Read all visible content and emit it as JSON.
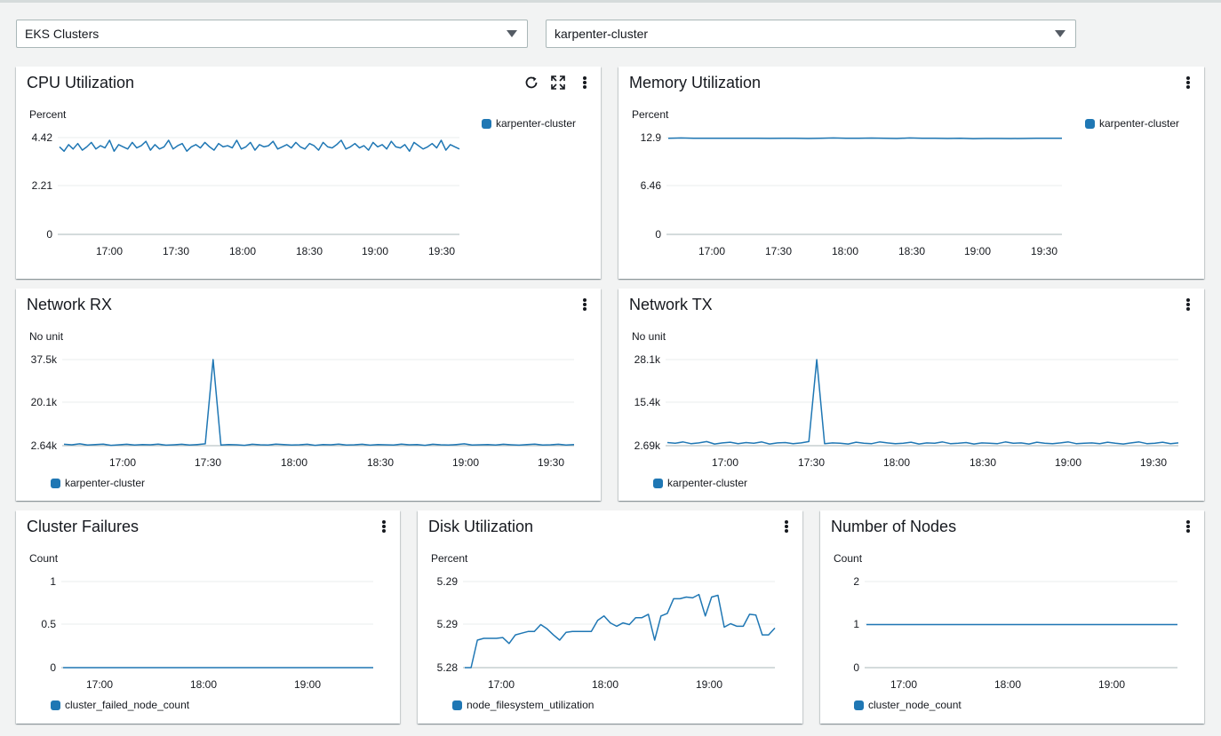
{
  "filters": {
    "service": "EKS Clusters",
    "cluster": "karpenter-cluster"
  },
  "icons": {
    "refresh": "refresh-icon",
    "expand": "expand-icon",
    "menu": "more-vertical-icon"
  },
  "colors": {
    "series": "#1f77b4",
    "grid": "#eaeded",
    "axis": "#aab7b8"
  },
  "panels": [
    {
      "id": "cpu",
      "title": "CPU Utilization",
      "unit": "Percent",
      "legend": "karpenter-cluster",
      "y_ticks": [
        "4.42",
        "2.21",
        "0"
      ],
      "x_ticks": [
        "17:00",
        "17:30",
        "18:00",
        "18:30",
        "19:00",
        "19:30"
      ]
    },
    {
      "id": "memory",
      "title": "Memory Utilization",
      "unit": "Percent",
      "legend": "karpenter-cluster",
      "y_ticks": [
        "12.9",
        "6.46",
        "0"
      ],
      "x_ticks": [
        "17:00",
        "17:30",
        "18:00",
        "18:30",
        "19:00",
        "19:30"
      ]
    },
    {
      "id": "netrx",
      "title": "Network RX",
      "unit": "No unit",
      "legend": "karpenter-cluster",
      "y_ticks": [
        "37.5k",
        "20.1k",
        "2.64k"
      ],
      "x_ticks": [
        "17:00",
        "17:30",
        "18:00",
        "18:30",
        "19:00",
        "19:30"
      ]
    },
    {
      "id": "nettx",
      "title": "Network TX",
      "unit": "No unit",
      "legend": "karpenter-cluster",
      "y_ticks": [
        "28.1k",
        "15.4k",
        "2.69k"
      ],
      "x_ticks": [
        "17:00",
        "17:30",
        "18:00",
        "18:30",
        "19:00",
        "19:30"
      ]
    },
    {
      "id": "failures",
      "title": "Cluster Failures",
      "unit": "Count",
      "legend": "cluster_failed_node_count",
      "y_ticks": [
        "1",
        "0.5",
        "0"
      ],
      "x_ticks": [
        "17:00",
        "18:00",
        "19:00"
      ]
    },
    {
      "id": "disk",
      "title": "Disk Utilization",
      "unit": "Percent",
      "legend": "node_filesystem_utilization",
      "y_ticks": [
        "5.29",
        "5.29",
        "5.28"
      ],
      "x_ticks": [
        "17:00",
        "18:00",
        "19:00"
      ]
    },
    {
      "id": "nodes",
      "title": "Number of Nodes",
      "unit": "Count",
      "legend": "cluster_node_count",
      "y_ticks": [
        "2",
        "1",
        "0"
      ],
      "x_ticks": [
        "17:00",
        "18:00",
        "19:00"
      ]
    }
  ],
  "chart_data": [
    {
      "type": "line",
      "title": "CPU Utilization",
      "ylabel": "Percent",
      "ylim": [
        0,
        4.42
      ],
      "x_range": [
        "16:42",
        "19:38"
      ],
      "series": [
        {
          "name": "karpenter-cluster",
          "values": [
            4.0,
            3.8,
            4.1,
            3.9,
            4.15,
            3.85,
            4.0,
            4.2,
            3.9,
            4.05,
            3.95,
            4.3,
            3.8,
            4.1,
            4.0,
            3.9,
            4.2,
            3.95,
            4.05,
            4.25,
            3.85,
            4.1,
            3.9,
            4.0,
            4.3,
            3.9,
            4.05,
            4.15,
            3.8,
            4.0,
            4.1,
            3.95,
            4.2,
            4.0,
            3.85,
            4.15,
            4.0,
            4.05,
            3.95,
            4.3,
            3.9,
            4.0,
            4.2,
            3.85,
            4.1,
            4.0,
            4.05,
            4.25,
            3.9,
            4.0,
            4.1,
            3.95,
            4.2,
            4.0,
            3.9,
            4.15,
            4.05,
            3.85,
            4.2,
            4.0,
            3.95,
            4.1,
            4.3,
            3.9,
            4.0,
            4.15,
            3.95,
            4.05,
            3.85,
            4.2,
            4.0,
            4.1,
            3.9,
            4.25,
            4.0,
            3.95,
            4.1,
            3.8,
            4.2,
            4.05,
            3.9,
            4.0,
            4.15,
            3.95,
            4.3,
            3.85,
            4.1,
            4.0,
            3.9
          ]
        }
      ]
    },
    {
      "type": "line",
      "title": "Memory Utilization",
      "ylabel": "Percent",
      "ylim": [
        0,
        12.9
      ],
      "x_range": [
        "16:42",
        "19:38"
      ],
      "series": [
        {
          "name": "karpenter-cluster",
          "values": [
            12.8,
            12.85,
            12.8,
            12.82,
            12.8,
            12.81,
            12.8,
            12.8,
            12.79,
            12.8,
            12.8,
            12.78,
            12.8,
            12.85,
            12.8,
            12.82,
            12.84,
            12.8,
            12.78,
            12.85,
            12.82,
            12.8,
            12.78,
            12.8,
            12.76,
            12.78,
            12.78,
            12.77,
            12.78,
            12.8,
            12.8,
            12.81
          ]
        }
      ]
    },
    {
      "type": "line",
      "title": "Network RX",
      "ylabel": "No unit",
      "ylim": [
        2640,
        37500
      ],
      "x_range": [
        "16:42",
        "19:38"
      ],
      "series": [
        {
          "name": "karpenter-cluster",
          "values": [
            3200,
            3000,
            3400,
            2900,
            3100,
            3300,
            2800,
            3000,
            3200,
            2900,
            3100,
            3000,
            3300,
            2850,
            3000,
            3200,
            2900,
            3100,
            3400,
            37500,
            2900,
            3100,
            3000,
            2800,
            3200,
            3000,
            2900,
            3300,
            3100,
            2900,
            3000,
            3200,
            2800,
            3100,
            3000,
            3300,
            2900,
            3000,
            3200,
            2850,
            3100,
            3000,
            2900,
            3300,
            3000,
            3100,
            2800,
            3200,
            3000,
            2900,
            3100,
            3400,
            2900,
            3000,
            3100,
            2900,
            3200,
            3000,
            2850,
            3100,
            3300,
            2900,
            3000,
            3200,
            2900,
            3100
          ]
        }
      ]
    },
    {
      "type": "line",
      "title": "Network TX",
      "ylabel": "No unit",
      "ylim": [
        2690,
        28100
      ],
      "x_range": [
        "16:42",
        "19:38"
      ],
      "series": [
        {
          "name": "karpenter-cluster",
          "values": [
            3600,
            3400,
            3800,
            3300,
            3500,
            3900,
            3200,
            3500,
            3700,
            3300,
            3600,
            3400,
            3800,
            3200,
            3500,
            3600,
            3300,
            3500,
            3900,
            28100,
            3300,
            3500,
            3400,
            3200,
            3700,
            3400,
            3300,
            3800,
            3500,
            3300,
            3400,
            3700,
            3200,
            3500,
            3400,
            3800,
            3300,
            3400,
            3600,
            3200,
            3500,
            3400,
            3300,
            3800,
            3400,
            3500,
            3200,
            3700,
            3400,
            3300,
            3500,
            3800,
            3300,
            3400,
            3500,
            3300,
            3700,
            3400,
            3200,
            3500,
            3800,
            3300,
            3400,
            3700,
            3300,
            3500
          ]
        }
      ]
    },
    {
      "type": "line",
      "title": "Cluster Failures",
      "ylabel": "Count",
      "ylim": [
        0,
        1
      ],
      "x_range": [
        "16:42",
        "19:38"
      ],
      "series": [
        {
          "name": "cluster_failed_node_count",
          "values": [
            0,
            0
          ]
        }
      ]
    },
    {
      "type": "line",
      "title": "Disk Utilization",
      "ylabel": "Percent",
      "ylim": [
        5.28,
        5.29
      ],
      "x_range": [
        "16:42",
        "19:38"
      ],
      "series": [
        {
          "name": "node_filesystem_utilization",
          "values": [
            5.28,
            5.28,
            5.2832,
            5.2834,
            5.2834,
            5.2834,
            5.2835,
            5.2828,
            5.2838,
            5.284,
            5.2842,
            5.2842,
            5.285,
            5.2845,
            5.2838,
            5.2832,
            5.2841,
            5.2842,
            5.2842,
            5.2842,
            5.2842,
            5.2855,
            5.286,
            5.2852,
            5.2848,
            5.2852,
            5.285,
            5.2858,
            5.2858,
            5.2862,
            5.2832,
            5.286,
            5.2863,
            5.288,
            5.288,
            5.2882,
            5.2881,
            5.2885,
            5.286,
            5.2882,
            5.2884,
            5.2847,
            5.2851,
            5.2848,
            5.2848,
            5.2862,
            5.2861,
            5.2838,
            5.2838,
            5.2846
          ]
        }
      ]
    },
    {
      "type": "line",
      "title": "Number of Nodes",
      "ylabel": "Count",
      "ylim": [
        0,
        2
      ],
      "x_range": [
        "16:42",
        "19:38"
      ],
      "series": [
        {
          "name": "cluster_node_count",
          "values": [
            1,
            1
          ]
        }
      ]
    }
  ]
}
